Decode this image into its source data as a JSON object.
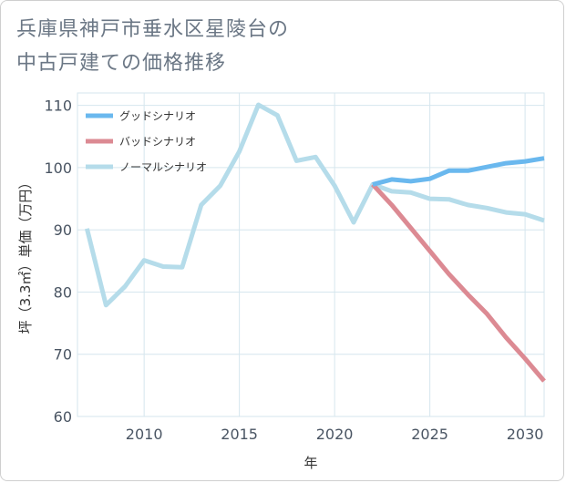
{
  "title": {
    "line1": "兵庫県神戸市垂水区星陵台の",
    "line2": "中古戸建ての価格推移"
  },
  "chart_data": {
    "type": "line",
    "xlabel": "年",
    "ylabel": "坪（3.3㎡）単価（万円）",
    "xlim": [
      2006.5,
      2031
    ],
    "ylim": [
      60,
      112
    ],
    "xticks": [
      2010,
      2015,
      2020,
      2025,
      2030
    ],
    "yticks": [
      60,
      70,
      80,
      90,
      100,
      110
    ],
    "grid": true,
    "legend_position": "top-left",
    "series": [
      {
        "name": "グッドシナリオ",
        "color": "#6ab8ee",
        "x": [
          2022,
          2023,
          2024,
          2025,
          2026,
          2027,
          2028,
          2029,
          2030,
          2031
        ],
        "y": [
          97.3,
          98.1,
          97.8,
          98.2,
          99.5,
          99.5,
          100.1,
          100.7,
          101.0,
          101.5
        ]
      },
      {
        "name": "バッドシナリオ",
        "color": "#dc8a93",
        "x": [
          2022,
          2023,
          2024,
          2025,
          2026,
          2027,
          2028,
          2029,
          2030,
          2031
        ],
        "y": [
          97.3,
          94.0,
          90.3,
          86.6,
          82.9,
          79.6,
          76.5,
          72.7,
          69.3,
          65.7
        ]
      },
      {
        "name": "ノーマルシナリオ",
        "color": "#b5dcea",
        "x": [
          2007,
          2008,
          2009,
          2010,
          2011,
          2012,
          2013,
          2014,
          2015,
          2016,
          2017,
          2018,
          2019,
          2020,
          2021,
          2022,
          2023,
          2024,
          2025,
          2026,
          2027,
          2028,
          2029,
          2030,
          2031
        ],
        "y": [
          90.2,
          77.9,
          80.9,
          85.1,
          84.1,
          84.0,
          94.0,
          97.1,
          102.6,
          110.1,
          108.4,
          101.1,
          101.7,
          97.1,
          91.2,
          97.3,
          96.2,
          96.0,
          95.0,
          94.9,
          94.0,
          93.5,
          92.8,
          92.5,
          91.5
        ]
      }
    ]
  }
}
